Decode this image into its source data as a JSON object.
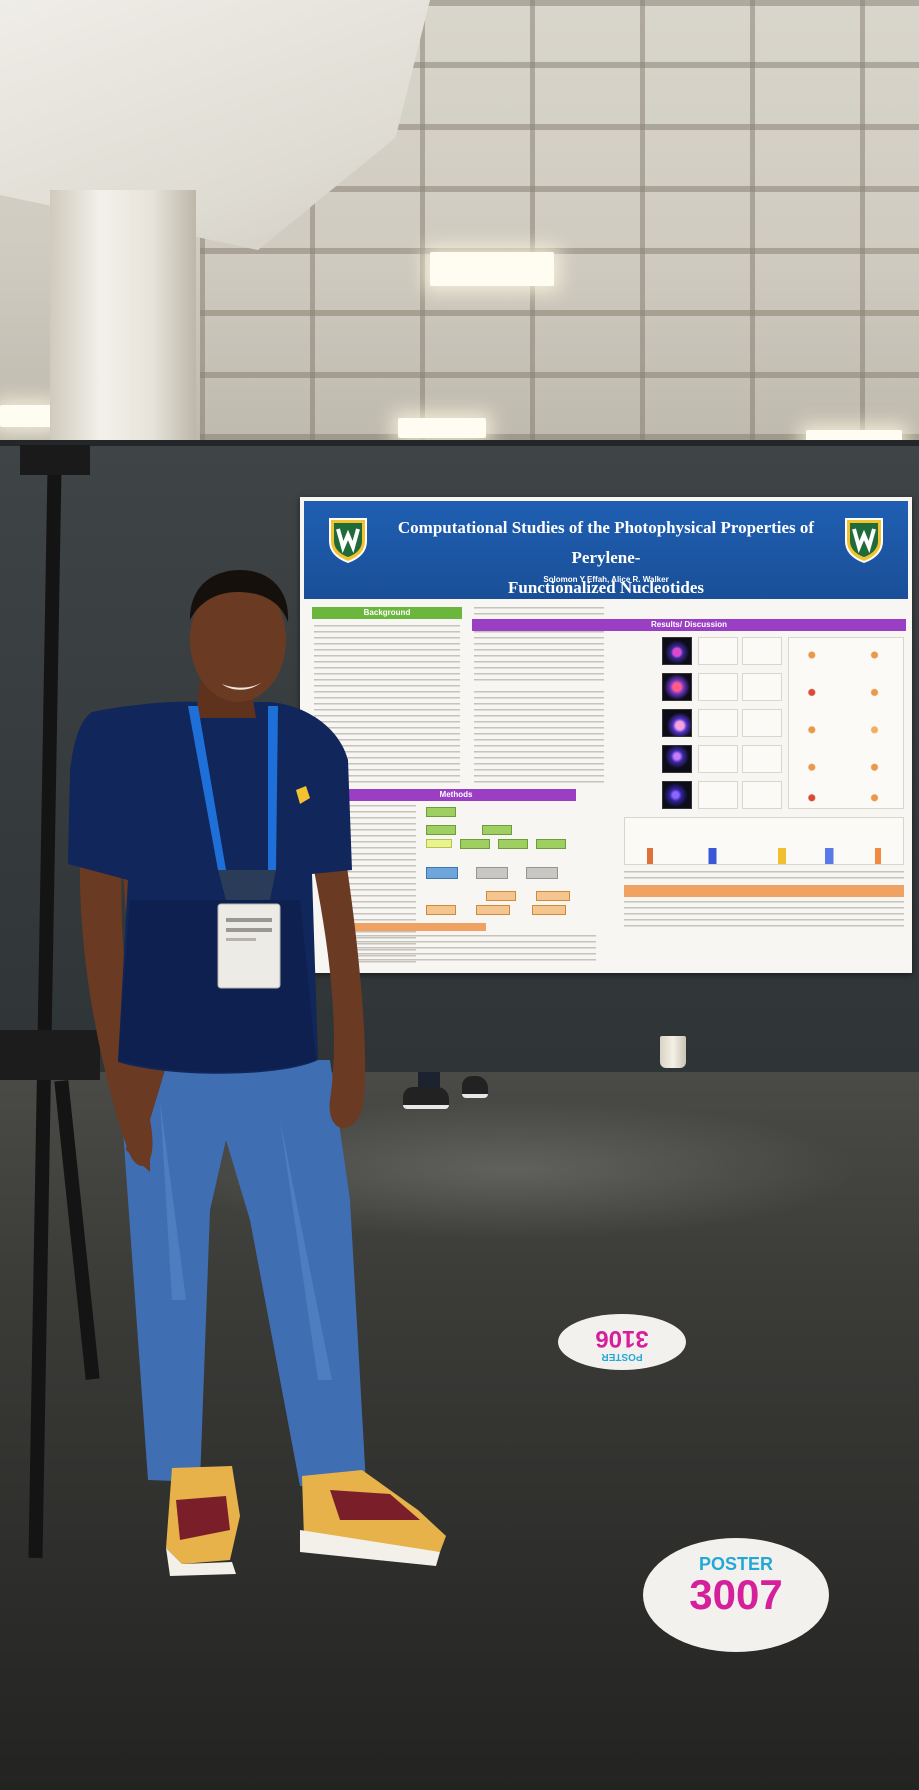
{
  "poster": {
    "title_line1": "Computational Studies of the Photophysical Properties of Perylene-",
    "title_line2": "Functionalized Nucleotides",
    "authors": "Solomon Y Effah, Alice R. Walker",
    "sections": {
      "background": "Background",
      "results": "Results/ Discussion",
      "methods": "Methods"
    }
  },
  "floor_stickers": [
    {
      "top": "POSTER",
      "number": "3106"
    },
    {
      "top": "POSTER",
      "number": "3007"
    }
  ],
  "colors": {
    "poster_header": "#1f5fb2",
    "background_header": "#6bb63c",
    "results_header": "#9a3fc4",
    "methods_header": "#9a3fc4",
    "lanyard": "#1e6fd8",
    "shirt": "#11265a",
    "jeans": "#3f6fb2",
    "sticker_poster": "#23a8d6",
    "sticker_number": "#d61f9b"
  }
}
